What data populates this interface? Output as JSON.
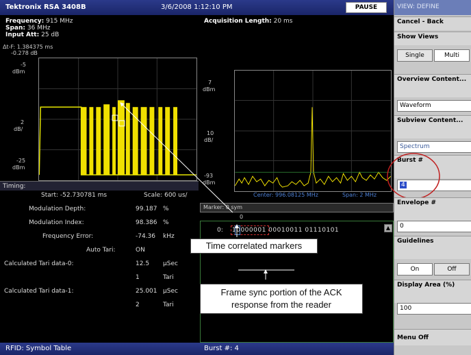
{
  "topbar": {
    "brand": "Tektronix RSA 3408B",
    "datetime": "3/6/2008 1:12:10 PM",
    "pause_label": "PAUSE"
  },
  "params": {
    "frequency_label": "Frequency:",
    "frequency_value": "915 MHz",
    "span_label": "Span:",
    "span_value": "36 MHz",
    "input_att_label": "Input Att:",
    "input_att_value": "25 dB",
    "acq_label": "Acquisition Length:",
    "acq_value": "20 ms"
  },
  "left_plot": {
    "delta_line1": "Δt-F: 1.384375 ms",
    "delta_line2": "-0.278 dB",
    "y_top": "-5",
    "y_top_unit": "dBm",
    "y_mid": "2",
    "y_mid_unit": "dB/",
    "y_bot": "-25",
    "y_bot_unit": "dBm"
  },
  "right_plot": {
    "y_top": "7",
    "y_top_unit": "dBm",
    "y_mid": "10",
    "y_mid_unit": "dB/",
    "y_bot": "-93",
    "y_bot_unit": "dBm",
    "center": "Center: 996.08125 MHz",
    "span": "Span: 2 MHz"
  },
  "timing": {
    "title": "Timing:",
    "start": "Start: -52.730781 ms",
    "scale": "Scale: 600 us/"
  },
  "table": {
    "rows": [
      {
        "label": "Modulation Depth:",
        "value": "99.187",
        "unit": "%"
      },
      {
        "label": "Modulation Index:",
        "value": "98.386",
        "unit": "%"
      },
      {
        "label": "Frequency Error:",
        "value": "-74.36",
        "unit": "kHz"
      },
      {
        "label": "Auto Tari:",
        "value": "ON",
        "unit": ""
      },
      {
        "label": "Calculated Tari data-0:",
        "value": "12.5",
        "unit": "µSec"
      },
      {
        "label": "",
        "value": "1",
        "unit": "Tari"
      },
      {
        "label": "Calculated Tari data-1:",
        "value": "25.001",
        "unit": "µSec"
      },
      {
        "label": "",
        "value": "2",
        "unit": "Tari"
      }
    ]
  },
  "symbols": {
    "marker": "Marker: 0 sym",
    "marker_sub": "0",
    "row_index": "0:",
    "bits": "10000001 00010011 01110101"
  },
  "callouts": {
    "markers": "Time correlated markers",
    "frame_sync": "Frame sync portion of the ACK response from the reader"
  },
  "bottombar": {
    "left": "RFID: Symbol Table",
    "burst": "Burst #: 4"
  },
  "sidebar": {
    "title": "VIEW: DEFINE",
    "cancel": "Cancel - Back",
    "show_views": "Show Views",
    "single": "Single",
    "multi": "Multi",
    "overview": "Overview Content...",
    "overview_value": "Waveform",
    "subview": "Subview Content...",
    "subview_value": "Spectrum",
    "burst": "Burst #",
    "burst_value": "4",
    "envelope": "Envelope #",
    "envelope_value": "0",
    "guidelines": "Guidelines",
    "on": "On",
    "off": "Off",
    "display_area": "Display Area (%)",
    "display_area_value": "100",
    "menu_off": "Menu Off"
  }
}
